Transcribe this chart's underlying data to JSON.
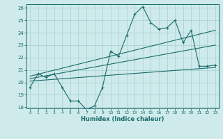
{
  "bg_color": "#ceeaea",
  "grid_color": "#add4d4",
  "line_color": "#1a6b6b",
  "x_label": "Humidex (Indice chaleur)",
  "y_min": 18,
  "y_max": 26,
  "x_min": 0,
  "x_max": 23,
  "y_ticks": [
    18,
    19,
    20,
    21,
    22,
    23,
    24,
    25,
    26
  ],
  "x_ticks": [
    0,
    1,
    2,
    3,
    4,
    5,
    6,
    7,
    8,
    9,
    10,
    11,
    12,
    13,
    14,
    15,
    16,
    17,
    18,
    19,
    20,
    21,
    22,
    23
  ],
  "series1_x": [
    0,
    1,
    2,
    3,
    4,
    5,
    6,
    7,
    8,
    9,
    10,
    11,
    12,
    13,
    14,
    15,
    16,
    17,
    18,
    19,
    20,
    21,
    22,
    23
  ],
  "series1_y": [
    19.6,
    20.7,
    20.4,
    20.7,
    19.6,
    18.5,
    18.5,
    17.8,
    18.1,
    19.6,
    22.5,
    22.1,
    23.8,
    25.5,
    26.1,
    24.8,
    24.3,
    24.4,
    25.0,
    23.2,
    24.2,
    21.3,
    21.3,
    21.4
  ],
  "series2_x": [
    0,
    23
  ],
  "series2_y": [
    20.5,
    24.2
  ],
  "series3_x": [
    0,
    23
  ],
  "series3_y": [
    20.3,
    23.0
  ],
  "series4_x": [
    0,
    23
  ],
  "series4_y": [
    20.1,
    21.2
  ]
}
